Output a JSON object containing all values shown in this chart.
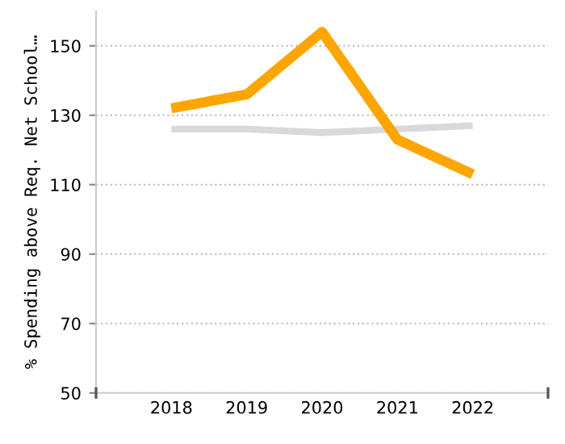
{
  "chart_data": {
    "type": "line",
    "ylabel": "% Spending above Req. Net School…",
    "categories": [
      "2018",
      "2019",
      "2020",
      "2021",
      "2022"
    ],
    "series": [
      {
        "color": "#d9d9d9",
        "values": [
          126,
          126,
          125,
          126,
          127
        ]
      },
      {
        "color": "#ffa500",
        "values": [
          132,
          136,
          154,
          123,
          113
        ]
      }
    ],
    "ylim": [
      50,
      160
    ],
    "yticks": [
      50,
      70,
      90,
      110,
      130,
      150
    ],
    "grid": "y",
    "marker": "none",
    "line_style": "solid"
  }
}
